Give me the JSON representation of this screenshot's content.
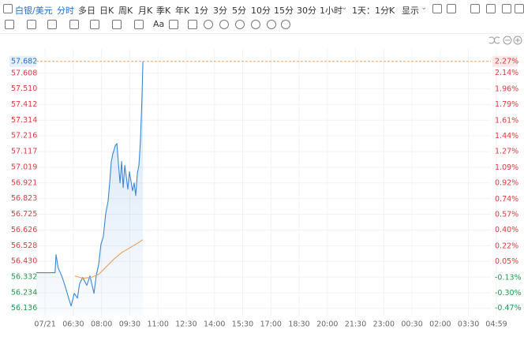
{
  "toolbar": {
    "symbol": "白银/美元",
    "tabs": [
      "分时",
      "多日",
      "日K",
      "周K",
      "月K",
      "季K",
      "年K",
      "1分",
      "3分",
      "5分",
      "10分",
      "15分",
      "30分",
      "1小时",
      "1天：1分K",
      "显示"
    ],
    "active_tab": 0,
    "text_tool": "Aa"
  },
  "chart_data": {
    "type": "line",
    "xlim": [
      0,
      1467
    ],
    "xticks": [
      {
        "value": 28,
        "label": "07/21"
      },
      {
        "value": 118,
        "label": "06:30"
      },
      {
        "value": 208,
        "label": "08:00"
      },
      {
        "value": 298,
        "label": "09:30"
      },
      {
        "value": 388,
        "label": "11:00"
      },
      {
        "value": 478,
        "label": "12:30"
      },
      {
        "value": 568,
        "label": "14:00"
      },
      {
        "value": 658,
        "label": "15:30"
      },
      {
        "value": 748,
        "label": "17:00"
      },
      {
        "value": 838,
        "label": "18:30"
      },
      {
        "value": 928,
        "label": "20:00"
      },
      {
        "value": 1018,
        "label": "21:30"
      },
      {
        "value": 1108,
        "label": "23:00"
      },
      {
        "value": 1198,
        "label": "00:30"
      },
      {
        "value": 1288,
        "label": "02:00"
      },
      {
        "value": 1378,
        "label": "03:30"
      },
      {
        "value": 1467,
        "label": "04:59"
      }
    ],
    "ylim": [
      56.09,
      57.76
    ],
    "yticks": [
      57.682,
      57.608,
      {
        "value": 57.51,
        "label": "57.510"
      },
      57.412,
      57.314,
      57.216,
      57.117,
      57.019,
      56.921,
      56.823,
      56.725,
      56.626,
      56.528,
      {
        "value": 56.43,
        "label": "56.430"
      },
      56.332,
      56.234,
      56.136
    ],
    "y2lim": [
      -0.551,
      2.408
    ],
    "y2ticks": [
      {
        "value": 2.27,
        "label": "2.27%"
      },
      {
        "value": 2.14,
        "label": "2.14%"
      },
      {
        "value": 1.96,
        "label": "1.96%"
      },
      {
        "value": 1.79,
        "label": "1.79%"
      },
      {
        "value": 1.61,
        "label": "1.61%"
      },
      {
        "value": 1.44,
        "label": "1.44%"
      },
      {
        "value": 1.27,
        "label": "1.27%"
      },
      {
        "value": 1.09,
        "label": "1.09%"
      },
      {
        "value": 0.92,
        "label": "0.92%"
      },
      {
        "value": 0.74,
        "label": "0.74%"
      },
      {
        "value": 0.57,
        "label": "0.57%"
      },
      {
        "value": 0.4,
        "label": "0.40%"
      },
      {
        "value": 0.22,
        "label": "0.22%"
      },
      {
        "value": 0.05,
        "label": "0.05%"
      },
      {
        "value": -0.13,
        "label": "-0.13%"
      },
      {
        "value": -0.3,
        "label": "-0.30%"
      },
      {
        "value": -0.47,
        "label": "-0.47%"
      }
    ],
    "up_color": "#e0393e",
    "down_color": "#1a9b4b",
    "grid": true,
    "series": [
      {
        "color": "#3a86d9",
        "area": true,
        "x": [
          0,
          60,
          63,
          70,
          81,
          91,
          101,
          111,
          121,
          131,
          138,
          148,
          161,
          171,
          184,
          191,
          199,
          206,
          214,
          221,
          229,
          234,
          239,
          244,
          252,
          257,
          262,
          267,
          272,
          277,
          282,
          287,
          292,
          297,
          302,
          307,
          312,
          317,
          322,
          327,
          332,
          337,
          340
        ],
        "values": [
          56.359,
          56.359,
          56.472,
          56.388,
          56.339,
          56.28,
          56.215,
          56.151,
          56.23,
          56.2,
          56.289,
          56.329,
          56.28,
          56.339,
          56.23,
          56.339,
          56.413,
          56.536,
          56.586,
          56.724,
          56.808,
          56.921,
          57.055,
          57.104,
          57.154,
          57.168,
          57.04,
          56.921,
          57.055,
          56.892,
          57.03,
          56.956,
          56.882,
          56.991,
          56.931,
          56.872,
          56.921,
          56.842,
          56.981,
          57.03,
          57.178,
          57.45,
          57.682
        ]
      },
      {
        "color": "#e8a060",
        "x": [
          123,
          148,
          174,
          199,
          224,
          249,
          274,
          299,
          325,
          340
        ],
        "values": [
          56.339,
          56.324,
          56.329,
          56.349,
          56.398,
          56.447,
          56.487,
          56.516,
          56.546,
          56.566
        ]
      }
    ]
  }
}
